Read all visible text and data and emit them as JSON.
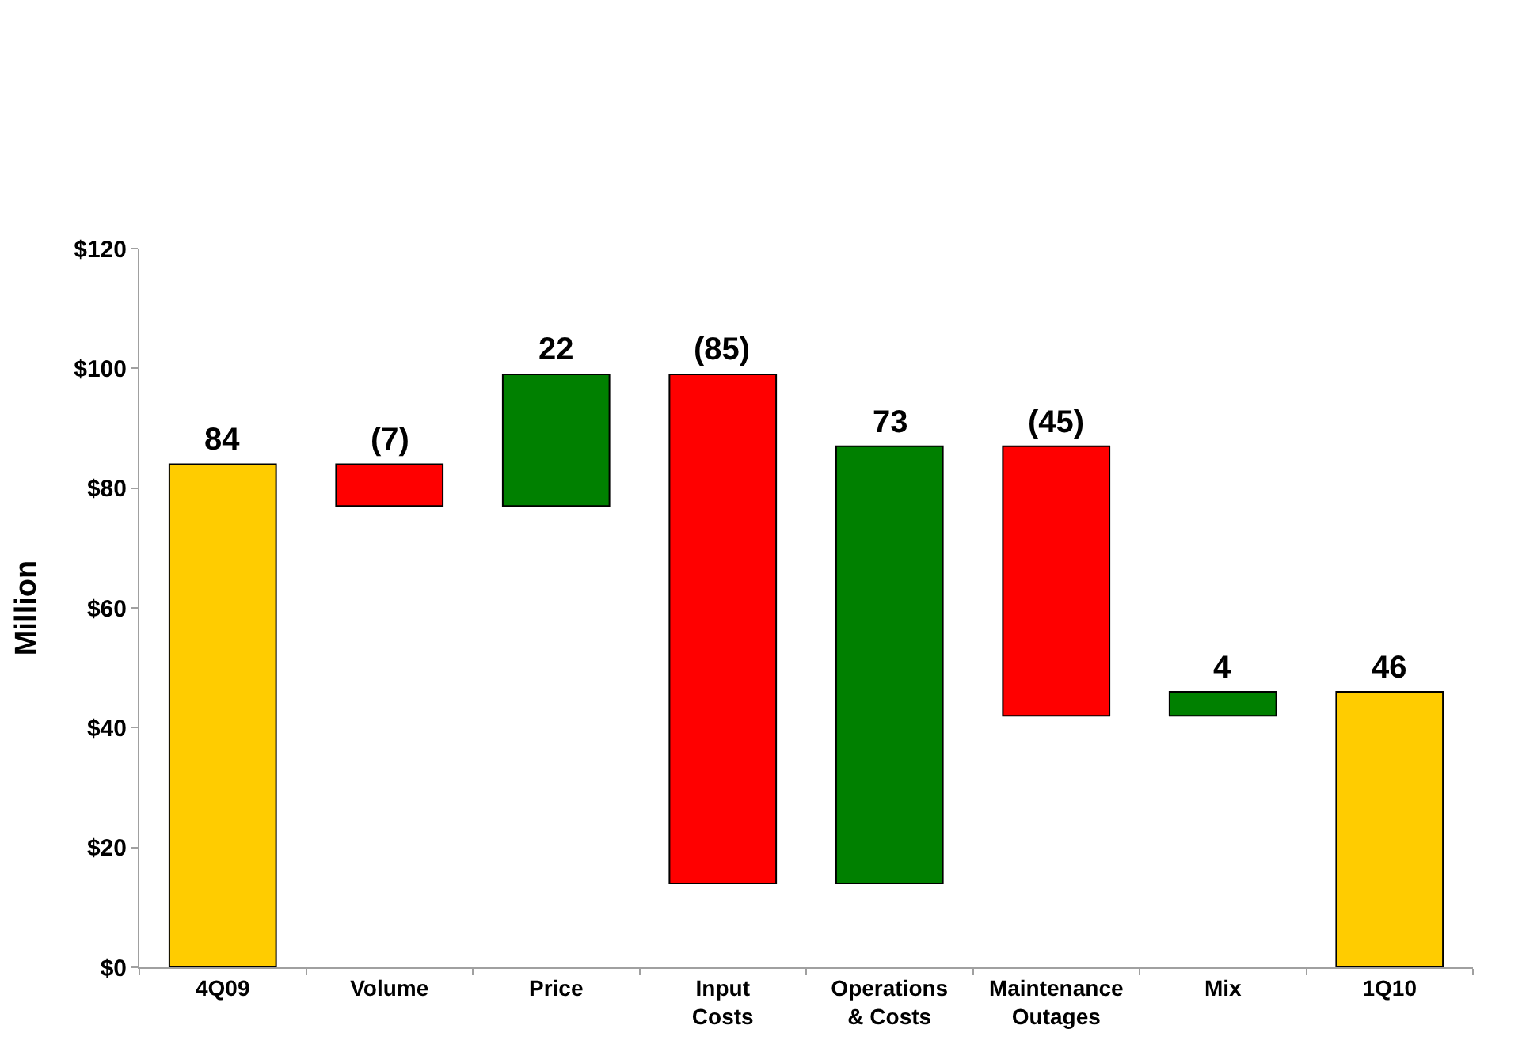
{
  "chart_data": {
    "type": "bar",
    "categories": [
      "4Q09",
      "Volume",
      "Price",
      "Input\nCosts",
      "Operations\n& Costs",
      "Maintenance\nOutages",
      "Mix",
      "1Q10"
    ],
    "base": [
      0,
      84,
      77,
      99,
      14,
      87,
      42,
      0
    ],
    "values": [
      84,
      -7,
      22,
      -85,
      73,
      -45,
      4,
      46
    ],
    "colors": [
      "#ffcc00",
      "#ff0000",
      "#008000",
      "#ff0000",
      "#008000",
      "#ff0000",
      "#008000",
      "#ffcc00"
    ],
    "value_labels": [
      "84",
      "(7)",
      "22",
      "(85)",
      "73",
      "(45)",
      "4",
      "46"
    ],
    "ylabel": "Million",
    "ylim": [
      0,
      120
    ],
    "yticks": [
      {
        "value": 0,
        "label": "$0"
      },
      {
        "value": 20,
        "label": "$20"
      },
      {
        "value": 40,
        "label": "$40"
      },
      {
        "value": 60,
        "label": "$60"
      },
      {
        "value": 80,
        "label": "$80"
      },
      {
        "value": 100,
        "label": "$100"
      },
      {
        "value": 120,
        "label": "$120"
      }
    ],
    "grid": false
  }
}
